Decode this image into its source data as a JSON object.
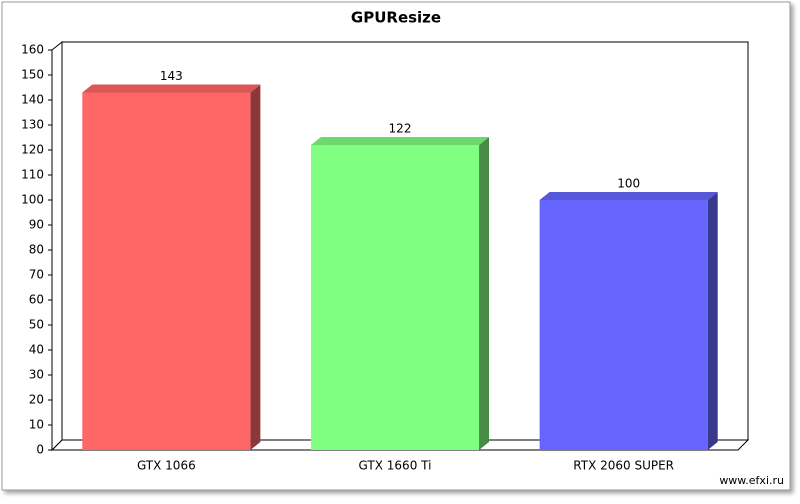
{
  "chart_data": {
    "type": "bar",
    "title": "GPUResize",
    "categories": [
      "GTX 1066",
      "GTX 1660 Ti",
      "RTX 2060 SUPER"
    ],
    "values": [
      143,
      122,
      100
    ],
    "colors": [
      "#ff6666",
      "#80ff80",
      "#6666ff"
    ],
    "ylim": [
      0,
      160
    ],
    "yticks": [
      0,
      10,
      20,
      30,
      40,
      50,
      60,
      70,
      80,
      90,
      100,
      110,
      120,
      130,
      140,
      150,
      160
    ],
    "footer": "www.efxi.ru"
  }
}
